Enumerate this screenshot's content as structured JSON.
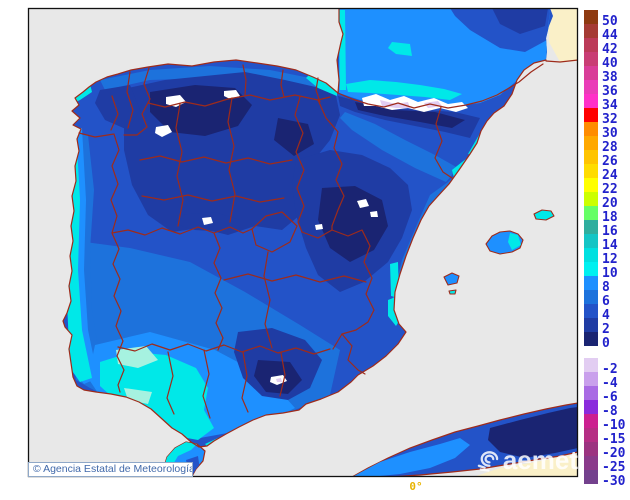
{
  "map": {
    "meridian_label": "0°",
    "sea_color": "#E8E8E8",
    "nodata_land_color": "#FAF0C8",
    "coast_border_color": "#9E2B1B",
    "frame_color": "#111111"
  },
  "attribution": {
    "text": "© Agencia Estatal de Meteorología"
  },
  "watermark": {
    "text": "aemet"
  },
  "scale": {
    "label_color": "#2222CC",
    "upper": [
      {
        "label": "50",
        "color": "#8E3A10"
      },
      {
        "label": "44",
        "color": "#A53B33"
      },
      {
        "label": "42",
        "color": "#BC3B58"
      },
      {
        "label": "40",
        "color": "#C93D74"
      },
      {
        "label": "38",
        "color": "#D93D98"
      },
      {
        "label": "36",
        "color": "#EA3CB8"
      },
      {
        "label": "34",
        "color": "#FF30C8"
      },
      {
        "label": "32",
        "color": "#FF0000"
      },
      {
        "label": "30",
        "color": "#FF8C00"
      },
      {
        "label": "28",
        "color": "#FFA800"
      },
      {
        "label": "26",
        "color": "#FFC400"
      },
      {
        "label": "24",
        "color": "#FFDC00"
      },
      {
        "label": "22",
        "color": "#FFFF00"
      },
      {
        "label": "20",
        "color": "#CCFF00"
      },
      {
        "label": "18",
        "color": "#66FF66"
      },
      {
        "label": "16",
        "color": "#2FAE9E"
      },
      {
        "label": "14",
        "color": "#14C5C5"
      },
      {
        "label": "12",
        "color": "#00E0E0"
      },
      {
        "label": "10",
        "color": "#00F0F0"
      },
      {
        "label": "8",
        "color": "#1E90FF"
      },
      {
        "label": "6",
        "color": "#1D72DC"
      },
      {
        "label": "4",
        "color": "#2353C8"
      },
      {
        "label": "2",
        "color": "#1F3CA4"
      },
      {
        "label": "0",
        "color": "#1A2472"
      }
    ],
    "lower": [
      {
        "label": "-2",
        "color": "#E2CDF2"
      },
      {
        "label": "-4",
        "color": "#C9A0EC"
      },
      {
        "label": "-6",
        "color": "#A96BE4"
      },
      {
        "label": "-8",
        "color": "#8A2BDC"
      },
      {
        "label": "-10",
        "color": "#CC2090"
      },
      {
        "label": "-15",
        "color": "#B52E84"
      },
      {
        "label": "-20",
        "color": "#9C3380"
      },
      {
        "label": "-25",
        "color": "#8A3A8A"
      },
      {
        "label": "-30",
        "color": "#73418D"
      }
    ]
  }
}
